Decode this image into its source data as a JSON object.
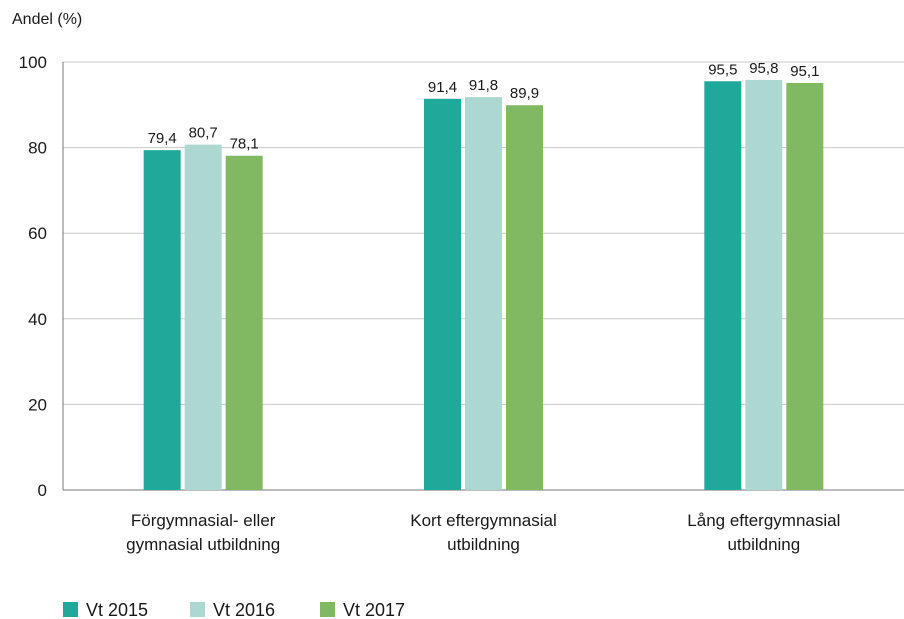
{
  "chart_data": {
    "type": "bar",
    "ylabel": "Andel (%)",
    "ylim": [
      0,
      100
    ],
    "yticks": [
      0,
      20,
      40,
      60,
      80,
      100
    ],
    "grid": true,
    "legend_position": "bottom-left",
    "categories": [
      [
        "Förgymnasial- eller",
        "gymnasial utbildning"
      ],
      [
        "Kort eftergymnasial",
        "utbildning"
      ],
      [
        "Lång eftergymnasial",
        "utbildning"
      ]
    ],
    "series": [
      {
        "name": "Vt 2015",
        "color": "#1ea99b",
        "values": [
          79.4,
          91.4,
          95.5
        ],
        "labels": [
          "79,4",
          "91,4",
          "95,5"
        ]
      },
      {
        "name": "Vt 2016",
        "color": "#acd8d1",
        "values": [
          80.7,
          91.8,
          95.8
        ],
        "labels": [
          "80,7",
          "91,8",
          "95,8"
        ]
      },
      {
        "name": "Vt 2017",
        "color": "#80b962",
        "values": [
          78.1,
          89.9,
          95.1
        ],
        "labels": [
          "78,1",
          "89,9",
          "95,1"
        ]
      }
    ]
  }
}
